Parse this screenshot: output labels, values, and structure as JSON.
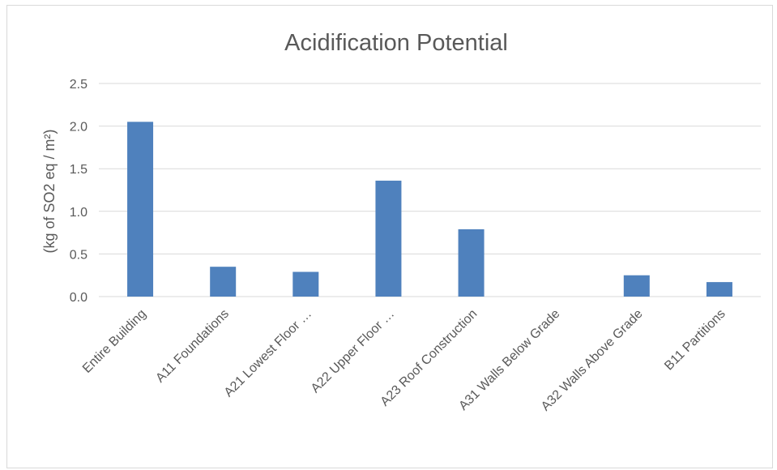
{
  "chart_data": {
    "type": "bar",
    "title": "Acidification Potential",
    "xlabel": "",
    "ylabel": "(kg of SO2 eq / m²)",
    "categories": [
      "Entire Building",
      "A11 Foundations",
      "A21 Lowest Floor …",
      "A22 Upper Floor …",
      "A23 Roof Construction",
      "A31 Walls Below Grade",
      "A32 Walls Above Grade",
      "B11 Partitions"
    ],
    "values": [
      2.05,
      0.35,
      0.29,
      1.36,
      0.79,
      0.0,
      0.25,
      0.17
    ],
    "ylim": [
      0,
      2.5
    ],
    "yticks": [
      "0.0",
      "0.5",
      "1.0",
      "1.5",
      "2.0",
      "2.5"
    ],
    "grid": true,
    "legend": "none",
    "bar_color": "#4f81bd"
  }
}
